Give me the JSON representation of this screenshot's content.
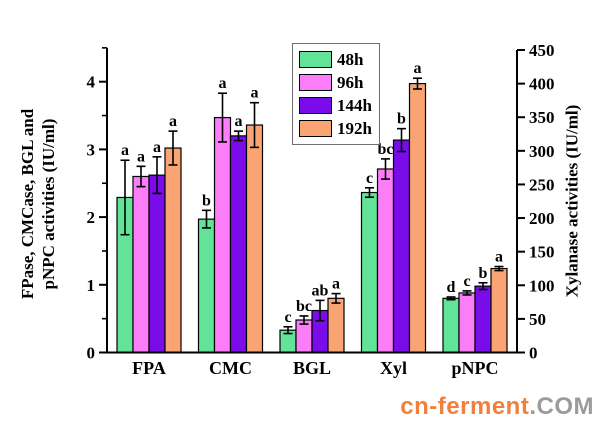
{
  "figure": {
    "watermark": {
      "name": "cn-ferment",
      "tld": ".COM",
      "name_color": "#F0803C",
      "tld_color": "#9B9B9B"
    }
  },
  "chart_data": {
    "type": "bar",
    "title": "",
    "categories": [
      "FPA",
      "CMC",
      "BGL",
      "Xyl",
      "pNPC"
    ],
    "category_axis": [
      "left",
      "left",
      "left",
      "right",
      "left"
    ],
    "series": [
      {
        "name": "48h",
        "color": "#63E398",
        "values": [
          2.29,
          1.97,
          0.33,
          238,
          0.8
        ],
        "errors": [
          0.55,
          0.13,
          0.05,
          7,
          0.02
        ],
        "sig_letters": [
          "a",
          "b",
          "c",
          "c",
          "d"
        ]
      },
      {
        "name": "96h",
        "color": "#FB7DF8",
        "values": [
          2.6,
          3.47,
          0.48,
          273,
          0.88
        ],
        "errors": [
          0.15,
          0.36,
          0.06,
          15,
          0.03
        ],
        "sig_letters": [
          "a",
          "a",
          "bc",
          "bc",
          "c"
        ]
      },
      {
        "name": "144h",
        "color": "#7B0CEA",
        "values": [
          2.62,
          3.2,
          0.62,
          316,
          0.98
        ],
        "errors": [
          0.27,
          0.07,
          0.15,
          17,
          0.05
        ],
        "sig_letters": [
          "a",
          "a",
          "ab",
          "b",
          "b"
        ]
      },
      {
        "name": "192h",
        "color": "#FAA473",
        "values": [
          3.02,
          3.36,
          0.8,
          400,
          1.24
        ],
        "errors": [
          0.25,
          0.33,
          0.07,
          8,
          0.03
        ],
        "sig_letters": [
          "a",
          "a",
          "a",
          "a",
          "a"
        ]
      }
    ],
    "left_axis": {
      "label": "FPase, CMCase, BGL and pNPC activities (IU/ml)",
      "label_lines": [
        "FPase, CMCase, BGL and",
        "pNPC activities (IU/ml)"
      ],
      "ticks": [
        0,
        1,
        2,
        3,
        4
      ],
      "minor_tick_step": 0.5,
      "range": [
        0,
        4.5
      ]
    },
    "right_axis": {
      "label": "Xylanase activities (IU/ml)",
      "ticks": [
        0,
        50,
        100,
        150,
        200,
        250,
        300,
        350,
        400,
        450
      ],
      "range": [
        0,
        450
      ]
    },
    "legend": {
      "position": "top-center",
      "entries": [
        "48h",
        "96h",
        "144h",
        "192h"
      ]
    },
    "grid": false,
    "layout_note": "Xyl group is read on the right axis; FPA, CMC, BGL, pNPC on the left axis. Error bars with significance letters above each bar."
  }
}
